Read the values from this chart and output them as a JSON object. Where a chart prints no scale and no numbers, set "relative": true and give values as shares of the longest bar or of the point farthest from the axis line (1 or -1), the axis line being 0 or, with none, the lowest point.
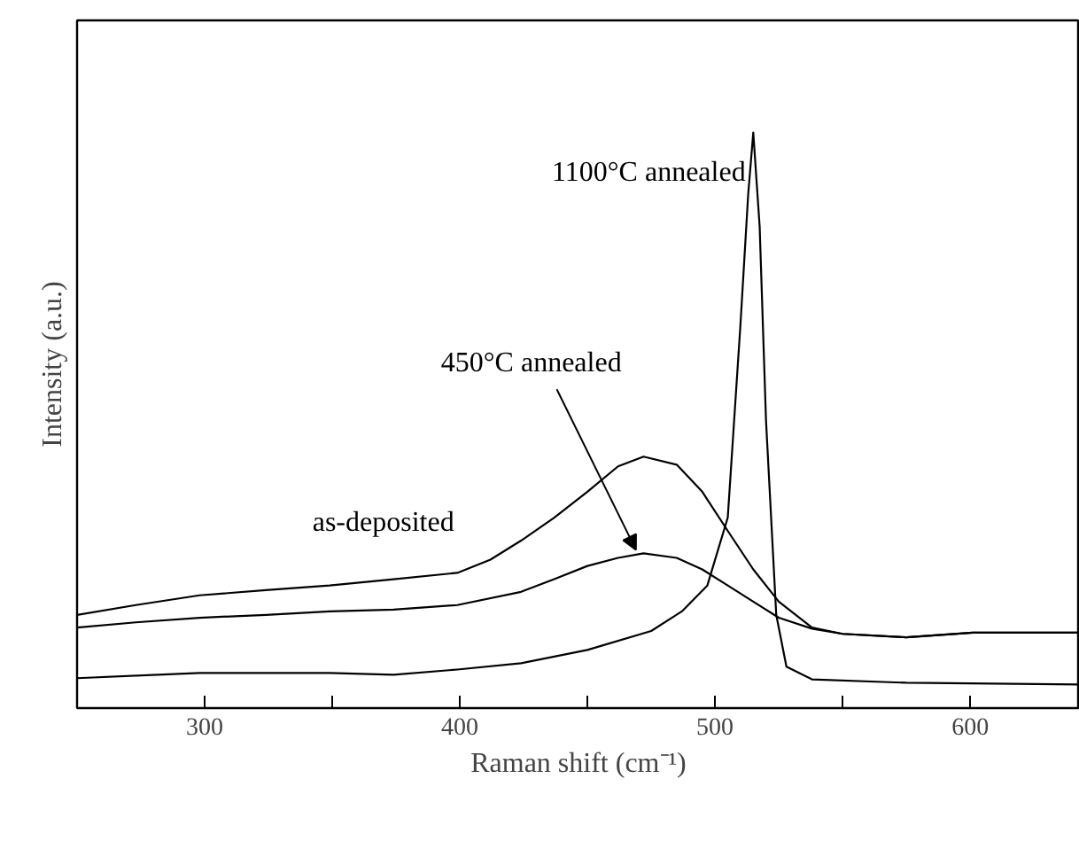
{
  "chart_data": {
    "type": "line",
    "relative": true,
    "xlabel": "Raman shift (cm⁻¹)",
    "ylabel": "Intensity (a.u.)",
    "xlim": [
      250,
      643
    ],
    "xticks": [
      300,
      {
        "value": 350,
        "label": null
      },
      400,
      {
        "value": 450,
        "label": null
      },
      500,
      {
        "value": 550,
        "label": null
      },
      600
    ],
    "grid": false,
    "marker": "none",
    "line_style": "solid",
    "series": [
      {
        "name": "as-deposited",
        "color": "#000000",
        "x": [
          250,
          273,
          298,
          324,
          349,
          374,
          399,
          412,
          424,
          437,
          450,
          462,
          472,
          485,
          495,
          505,
          515,
          525,
          538,
          550,
          575,
          601,
          626,
          643
        ],
        "values": [
          0.162,
          0.179,
          0.196,
          0.205,
          0.213,
          0.224,
          0.235,
          0.258,
          0.291,
          0.331,
          0.376,
          0.42,
          0.437,
          0.423,
          0.376,
          0.308,
          0.241,
          0.185,
          0.14,
          0.129,
          0.123,
          0.131,
          0.131,
          0.131
        ]
      },
      {
        "name": "450°C annealed",
        "color": "#000000",
        "x": [
          250,
          273,
          298,
          324,
          349,
          374,
          399,
          424,
          437,
          450,
          462,
          472,
          485,
          495,
          505,
          515,
          525,
          538,
          550,
          575,
          601,
          643
        ],
        "values": [
          0.14,
          0.149,
          0.157,
          0.162,
          0.168,
          0.171,
          0.179,
          0.202,
          0.224,
          0.247,
          0.261,
          0.269,
          0.261,
          0.241,
          0.213,
          0.185,
          0.157,
          0.138,
          0.129,
          0.123,
          0.131,
          0.131
        ]
      },
      {
        "name": "1100°C annealed",
        "color": "#000000",
        "x": [
          250,
          298,
          349,
          374,
          399,
          424,
          450,
          475,
          487,
          497,
          505,
          510,
          513,
          515,
          517.5,
          520,
          524,
          528,
          538,
          575,
          643
        ],
        "values": [
          0.052,
          0.061,
          0.061,
          0.058,
          0.067,
          0.078,
          0.101,
          0.134,
          0.168,
          0.213,
          0.331,
          0.668,
          0.892,
          1.0,
          0.837,
          0.499,
          0.162,
          0.072,
          0.05,
          0.044,
          0.041
        ]
      }
    ]
  }
}
